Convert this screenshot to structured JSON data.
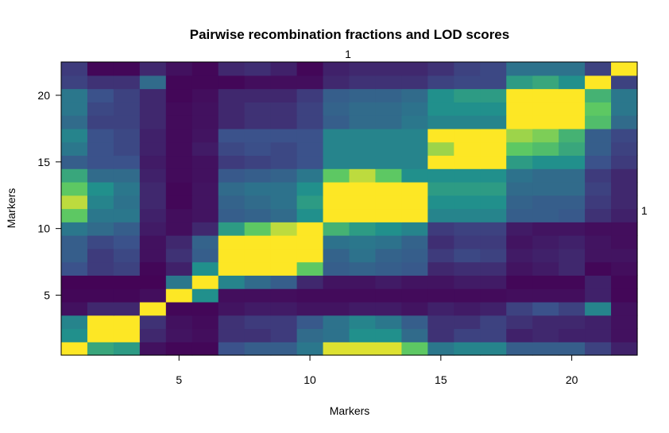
{
  "chart_data": {
    "type": "heatmap",
    "title": "Pairwise recombination fractions and LOD scores",
    "xlabel": "Markers",
    "ylabel": "Markers",
    "top_label": "1",
    "right_label": "1",
    "xlim": [
      0.5,
      22.5
    ],
    "ylim": [
      0.5,
      22.5
    ],
    "x_ticks": [
      5,
      10,
      15,
      20
    ],
    "y_ticks": [
      5,
      10,
      15,
      20
    ],
    "colormap": [
      "#440154",
      "#3b528b",
      "#21908c",
      "#5dc863",
      "#fde725"
    ],
    "value_range": [
      0,
      1
    ],
    "n_markers": 22,
    "cells": [
      [
        1.0,
        0.6,
        0.55,
        0.05,
        0.02,
        0.02,
        0.25,
        0.3,
        0.3,
        0.4,
        0.95,
        0.95,
        0.95,
        0.75,
        0.4,
        0.45,
        0.45,
        0.3,
        0.3,
        0.3,
        0.2,
        0.1
      ],
      [
        0.5,
        1.0,
        1.0,
        0.12,
        0.06,
        0.04,
        0.15,
        0.15,
        0.18,
        0.35,
        0.38,
        0.5,
        0.5,
        0.35,
        0.15,
        0.2,
        0.2,
        0.1,
        0.12,
        0.1,
        0.1,
        0.05
      ],
      [
        0.45,
        1.0,
        1.0,
        0.15,
        0.05,
        0.03,
        0.15,
        0.18,
        0.18,
        0.28,
        0.38,
        0.45,
        0.4,
        0.3,
        0.15,
        0.15,
        0.2,
        0.15,
        0.12,
        0.12,
        0.1,
        0.05
      ],
      [
        0.05,
        0.12,
        0.12,
        1.0,
        0.02,
        0.02,
        0.06,
        0.08,
        0.08,
        0.06,
        0.06,
        0.08,
        0.08,
        0.06,
        0.1,
        0.08,
        0.1,
        0.2,
        0.25,
        0.2,
        0.45,
        0.05
      ],
      [
        0.02,
        0.02,
        0.02,
        0.04,
        1.0,
        0.5,
        0.04,
        0.04,
        0.04,
        0.03,
        0.03,
        0.03,
        0.03,
        0.03,
        0.03,
        0.03,
        0.03,
        0.04,
        0.04,
        0.04,
        0.1,
        0.02
      ],
      [
        0.01,
        0.01,
        0.01,
        0.01,
        0.4,
        1.0,
        0.45,
        0.35,
        0.3,
        0.12,
        0.06,
        0.06,
        0.08,
        0.06,
        0.06,
        0.08,
        0.08,
        0.02,
        0.02,
        0.02,
        0.1,
        0.02
      ],
      [
        0.25,
        0.18,
        0.2,
        0.02,
        0.1,
        0.5,
        1.0,
        1.0,
        1.0,
        0.75,
        0.3,
        0.32,
        0.3,
        0.28,
        0.12,
        0.14,
        0.14,
        0.06,
        0.08,
        0.12,
        0.02,
        0.04
      ],
      [
        0.3,
        0.18,
        0.22,
        0.05,
        0.15,
        0.3,
        1.0,
        1.0,
        1.0,
        1.0,
        0.32,
        0.38,
        0.32,
        0.3,
        0.18,
        0.22,
        0.2,
        0.08,
        0.1,
        0.12,
        0.06,
        0.06
      ],
      [
        0.3,
        0.22,
        0.25,
        0.05,
        0.12,
        0.32,
        1.0,
        1.0,
        1.0,
        1.0,
        0.38,
        0.4,
        0.38,
        0.32,
        0.14,
        0.18,
        0.18,
        0.06,
        0.08,
        0.1,
        0.06,
        0.04
      ],
      [
        0.4,
        0.35,
        0.3,
        0.08,
        0.04,
        0.12,
        0.55,
        0.75,
        0.9,
        1.0,
        0.65,
        0.55,
        0.5,
        0.45,
        0.18,
        0.2,
        0.2,
        0.08,
        0.06,
        0.06,
        0.04,
        0.04
      ],
      [
        0.75,
        0.4,
        0.4,
        0.1,
        0.04,
        0.06,
        0.3,
        0.32,
        0.35,
        0.5,
        1.0,
        1.0,
        1.0,
        1.0,
        0.45,
        0.45,
        0.45,
        0.3,
        0.3,
        0.28,
        0.15,
        0.1
      ],
      [
        0.9,
        0.45,
        0.38,
        0.12,
        0.02,
        0.06,
        0.32,
        0.35,
        0.38,
        0.55,
        1.0,
        1.0,
        1.0,
        1.0,
        0.5,
        0.5,
        0.5,
        0.32,
        0.3,
        0.3,
        0.18,
        0.12
      ],
      [
        0.75,
        0.5,
        0.4,
        0.12,
        0.02,
        0.06,
        0.35,
        0.38,
        0.38,
        0.5,
        1.0,
        1.0,
        1.0,
        1.0,
        0.55,
        0.55,
        0.55,
        0.35,
        0.35,
        0.35,
        0.2,
        0.12
      ],
      [
        0.6,
        0.35,
        0.35,
        0.1,
        0.03,
        0.05,
        0.28,
        0.3,
        0.32,
        0.4,
        0.75,
        0.9,
        0.75,
        0.5,
        0.5,
        0.5,
        0.5,
        0.38,
        0.35,
        0.35,
        0.18,
        0.12
      ],
      [
        0.3,
        0.25,
        0.25,
        0.08,
        0.03,
        0.05,
        0.18,
        0.2,
        0.22,
        0.25,
        0.45,
        0.45,
        0.45,
        0.45,
        1.0,
        1.0,
        1.0,
        0.55,
        0.5,
        0.5,
        0.25,
        0.18
      ],
      [
        0.4,
        0.25,
        0.22,
        0.1,
        0.03,
        0.08,
        0.22,
        0.24,
        0.22,
        0.25,
        0.45,
        0.45,
        0.45,
        0.45,
        0.85,
        1.0,
        1.0,
        0.75,
        0.7,
        0.6,
        0.3,
        0.2
      ],
      [
        0.45,
        0.25,
        0.22,
        0.1,
        0.03,
        0.06,
        0.25,
        0.25,
        0.25,
        0.25,
        0.45,
        0.45,
        0.45,
        0.45,
        1.0,
        1.0,
        1.0,
        0.85,
        0.8,
        0.65,
        0.3,
        0.22
      ],
      [
        0.35,
        0.2,
        0.2,
        0.12,
        0.03,
        0.05,
        0.12,
        0.15,
        0.15,
        0.2,
        0.3,
        0.35,
        0.35,
        0.4,
        0.45,
        0.45,
        0.45,
        1.0,
        1.0,
        1.0,
        0.7,
        0.35
      ],
      [
        0.4,
        0.22,
        0.2,
        0.12,
        0.03,
        0.05,
        0.12,
        0.15,
        0.15,
        0.2,
        0.32,
        0.35,
        0.35,
        0.38,
        0.5,
        0.5,
        0.5,
        1.0,
        1.0,
        1.0,
        0.75,
        0.4
      ],
      [
        0.4,
        0.25,
        0.2,
        0.12,
        0.02,
        0.04,
        0.12,
        0.12,
        0.12,
        0.18,
        0.3,
        0.32,
        0.32,
        0.35,
        0.5,
        0.55,
        0.55,
        1.0,
        1.0,
        1.0,
        0.65,
        0.4
      ],
      [
        0.2,
        0.15,
        0.15,
        0.35,
        0.02,
        0.02,
        0.02,
        0.04,
        0.04,
        0.04,
        0.12,
        0.15,
        0.15,
        0.15,
        0.2,
        0.22,
        0.22,
        0.55,
        0.6,
        0.5,
        1.0,
        0.2
      ],
      [
        0.18,
        0.02,
        0.02,
        0.12,
        0.05,
        0.02,
        0.12,
        0.14,
        0.1,
        0.02,
        0.1,
        0.12,
        0.12,
        0.12,
        0.15,
        0.2,
        0.22,
        0.38,
        0.38,
        0.38,
        0.2,
        1.0
      ]
    ]
  }
}
